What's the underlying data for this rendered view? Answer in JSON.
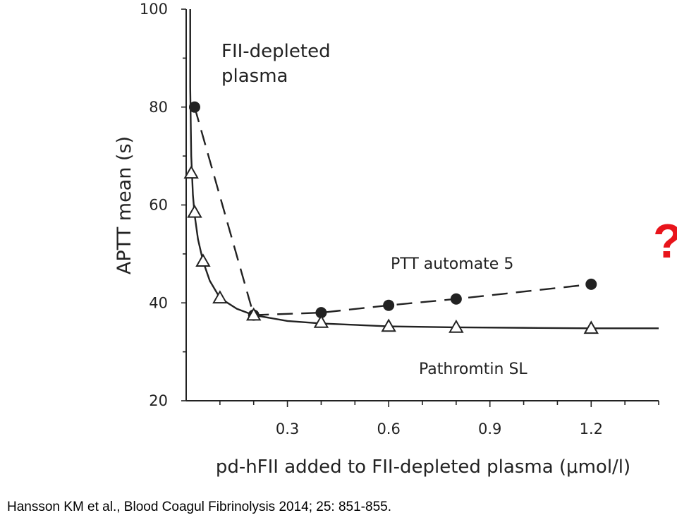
{
  "chart_data": {
    "type": "line",
    "title": "",
    "xlabel": "pd-hFII added to FII-depleted plasma (μmol/l)",
    "ylabel": "APTT mean (s)",
    "xlim": [
      0,
      1.4
    ],
    "ylim": [
      20,
      100
    ],
    "x_ticks": [
      "0.3",
      "0.6",
      "0.9",
      "1.2"
    ],
    "y_ticks": [
      "20",
      "40",
      "60",
      "80",
      "100"
    ],
    "grid": false,
    "annotations": [
      "FII-depleted",
      "plasma"
    ],
    "series": [
      {
        "name": "PTT automate 5",
        "line_style": "dashed",
        "marker": "filled-circle",
        "x": [
          0.025,
          0.2,
          0.4,
          0.6,
          0.8,
          1.2
        ],
        "y": [
          80,
          37.5,
          38,
          39.5,
          40.8,
          43.8
        ]
      },
      {
        "name": "Pathromtin SL",
        "line_style": "solid",
        "marker": "open-triangle",
        "x": [
          0.015,
          0.025,
          0.05,
          0.1,
          0.2,
          0.4,
          0.6,
          0.8,
          1.2
        ],
        "y": [
          66.5,
          58.5,
          48.5,
          41,
          37.5,
          36,
          35.2,
          35,
          34.8
        ]
      }
    ],
    "solid_curve": {
      "x": [
        0.012,
        0.012,
        0.015,
        0.02,
        0.025,
        0.035,
        0.05,
        0.07,
        0.1,
        0.15,
        0.2,
        0.3,
        0.4,
        0.6,
        0.8,
        1.0,
        1.2,
        1.4
      ],
      "y": [
        100,
        84,
        70,
        62,
        58,
        53,
        48.5,
        44.5,
        41,
        38.8,
        37.5,
        36.3,
        35.8,
        35.2,
        35.0,
        34.9,
        34.8,
        34.8
      ]
    }
  },
  "citation": "Hansson KM et al., Blood Coagul Fibrinolysis 2014; 25: 851-855.",
  "question_mark": "?",
  "colors": {
    "axis": "#222222",
    "question_mark": "#e8141b",
    "background": "#ffffff"
  }
}
